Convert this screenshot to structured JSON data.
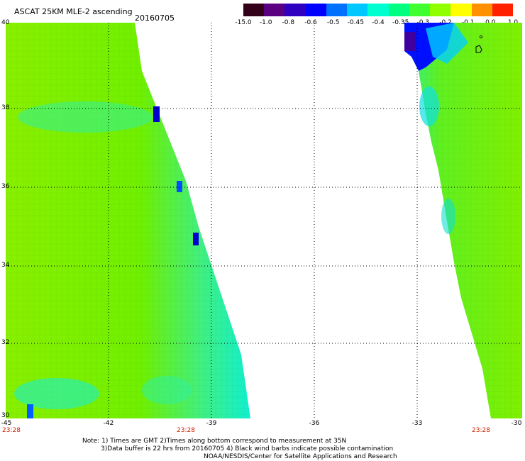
{
  "header": {
    "title": "ASCAT 25KM MLE-2 ascending",
    "date": "20160705"
  },
  "colorbar": {
    "labels": [
      "-15.0",
      "-1.0",
      "-0.8",
      "-0.6",
      "-0.5",
      "-0.45",
      "-0.4",
      "-0.35",
      "-0.3",
      "-0.2",
      "-0.1",
      "0.0",
      "1.0"
    ],
    "colors": [
      "#33001a",
      "#5a0080",
      "#3000c0",
      "#0000ff",
      "#0070ff",
      "#00c8ff",
      "#00ffd0",
      "#00ff80",
      "#40ff30",
      "#90ff00",
      "#ffff00",
      "#ff9000",
      "#ff2000"
    ]
  },
  "axes": {
    "y_labels": [
      "40",
      "38",
      "36",
      "34",
      "32",
      "30"
    ],
    "x_labels": [
      "-45",
      "-42",
      "-39",
      "-36",
      "-33",
      "-30"
    ],
    "time_labels": [
      "23:28",
      "23:28",
      "23:28"
    ]
  },
  "notes": {
    "line1": "Note: 1) Times are GMT 2)Times along bottom correspond to measurement at 35N",
    "line2": "3)Data buffer is 22 hrs from 20160705 4) Black wind barbs indicate possible contamination",
    "line3": "NOAA/NESDIS/Center for Satellite Applications and Research"
  },
  "map": {
    "lon_range": [
      -45,
      -30
    ],
    "lat_range": [
      30,
      40
    ],
    "swaths": [
      {
        "name": "left swath",
        "dominant_color": "#80f000"
      },
      {
        "name": "right swath",
        "dominant_color": "#80f000"
      }
    ]
  }
}
